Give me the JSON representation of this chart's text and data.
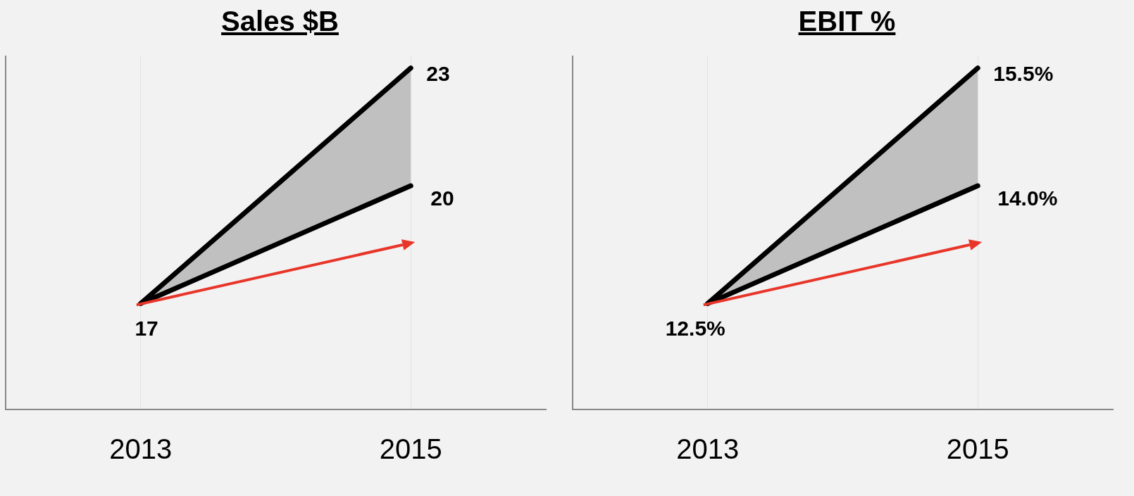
{
  "chart_data": [
    {
      "type": "line",
      "title": "Sales $B",
      "categories": [
        "2013",
        "2015"
      ],
      "grid": "x",
      "series": [
        {
          "color": "#000000",
          "values": [
            17,
            23
          ],
          "value_labels": [
            "17",
            "23"
          ]
        },
        {
          "color": "#000000",
          "values": [
            17,
            20
          ],
          "value_labels": [
            null,
            "20"
          ]
        }
      ]
    },
    {
      "type": "line",
      "title": "EBIT %",
      "categories": [
        "2013",
        "2015"
      ],
      "grid": "x",
      "series": [
        {
          "color": "#000000",
          "values": [
            12.5,
            15.5
          ],
          "value_labels": [
            "12.5%",
            "15.5%"
          ]
        },
        {
          "color": "#000000",
          "values": [
            12.5,
            14.0
          ],
          "value_labels": [
            null,
            "14.0%"
          ]
        }
      ]
    }
  ]
}
